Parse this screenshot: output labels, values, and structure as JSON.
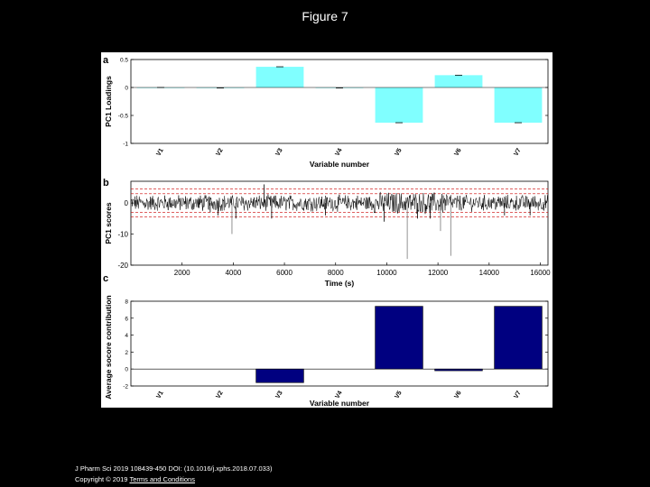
{
  "page": {
    "title": "Figure 7"
  },
  "footer": {
    "citation": "J Pharm Sci 2019 108439-450 DOI: (10.1016/j.xphs.2018.07.033)",
    "copyright": "Copyright © 2019",
    "terms_link": "Terms and Conditions"
  },
  "colors": {
    "bar_a": "#80FFFF",
    "bar_c": "#000080",
    "limit_lines": "#cc0000",
    "trace": "#000000"
  },
  "chart_data": [
    {
      "panel": "a",
      "type": "bar",
      "ylabel": "PC1 Loadings",
      "xlabel": "Variable number",
      "categories": [
        "V1",
        "V2",
        "V3",
        "V4",
        "V5",
        "V6",
        "V7"
      ],
      "values": [
        0.0,
        -0.01,
        0.37,
        -0.01,
        -0.63,
        0.22,
        -0.63
      ],
      "ylim": [
        -1,
        0.5
      ],
      "yticks": [
        "0.5",
        "0",
        "-0.5",
        "-1"
      ],
      "error_bars": true
    },
    {
      "panel": "b",
      "type": "line",
      "ylabel": "PC1 scores",
      "xlabel": "Time (s)",
      "xlim": [
        0,
        16300
      ],
      "ylim": [
        -20,
        7
      ],
      "xticks": [
        "2000",
        "4000",
        "6000",
        "8000",
        "10000",
        "12000",
        "14000",
        "16000"
      ],
      "yticks": [
        "0",
        "-10",
        "-20"
      ],
      "limit_lines": [
        3,
        4.5,
        -3,
        -4.5
      ],
      "description": "dense noisy score trace around 0 with occasional negative spikes"
    },
    {
      "panel": "c",
      "type": "bar",
      "ylabel": "Average socore contribution",
      "xlabel": "Variable number",
      "categories": [
        "V1",
        "V2",
        "V3",
        "V4",
        "V5",
        "V6",
        "V7"
      ],
      "values": [
        0,
        0,
        -1.6,
        0,
        7.4,
        -0.2,
        7.4
      ],
      "ylim": [
        -2,
        8
      ],
      "yticks": [
        "8",
        "6",
        "4",
        "2",
        "0",
        "-2"
      ]
    }
  ]
}
